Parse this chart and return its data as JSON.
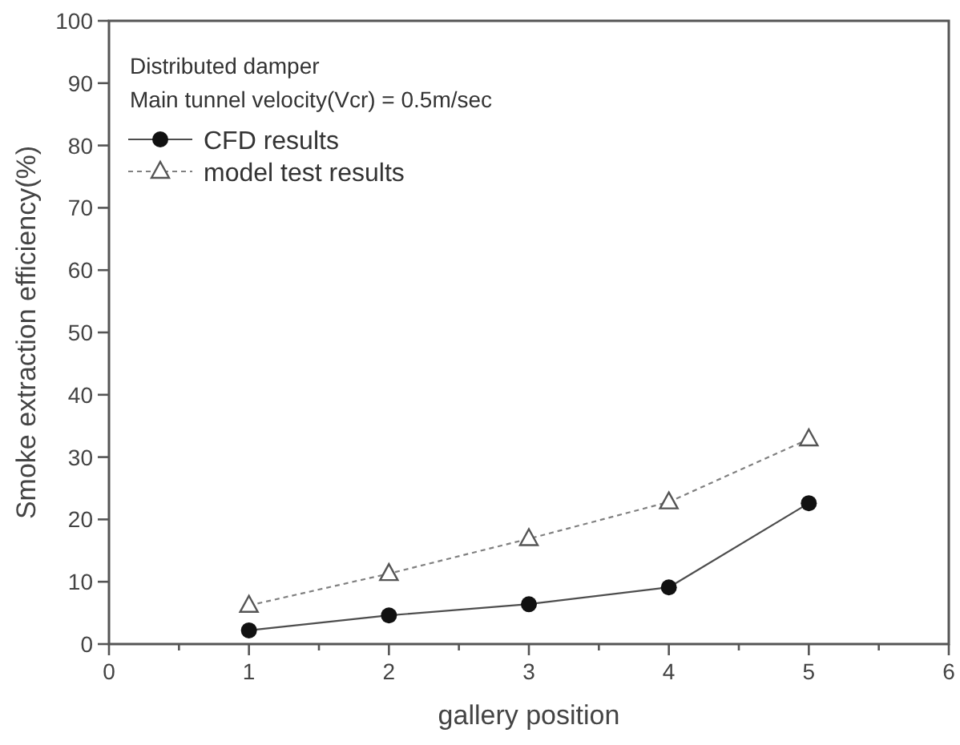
{
  "chart_data": {
    "type": "line",
    "xlabel": "gallery position",
    "ylabel": "Smoke extraction efficiency(%)",
    "annotations": [
      "Distributed damper",
      "Main tunnel velocity(Vcr) = 0.5m/sec"
    ],
    "x": [
      1,
      2,
      3,
      4,
      5
    ],
    "series": [
      {
        "name": "CFD results",
        "color": "#111111",
        "marker": "circle",
        "line_style": "solid",
        "values": [
          2.2,
          4.6,
          6.4,
          9.1,
          22.6
        ]
      },
      {
        "name": "model test results",
        "color": "#555555",
        "marker": "triangle",
        "line_style": "dashed",
        "values": [
          6.2,
          11.3,
          16.9,
          22.8,
          32.9
        ]
      }
    ],
    "xlim": [
      0,
      6
    ],
    "xticks": [
      0,
      {
        "value": 0.5,
        "label": null
      },
      1,
      {
        "value": 1.5,
        "label": null
      },
      2,
      {
        "value": 2.5,
        "label": null
      },
      3,
      {
        "value": 3.5,
        "label": null
      },
      4,
      {
        "value": 4.5,
        "label": null
      },
      5,
      {
        "value": 5.5,
        "label": null
      },
      6
    ],
    "ylim": [
      0,
      100
    ],
    "yticks": [
      0,
      10,
      20,
      30,
      40,
      50,
      60,
      70,
      80,
      90,
      100
    ],
    "legend": "top left",
    "grid": false
  }
}
